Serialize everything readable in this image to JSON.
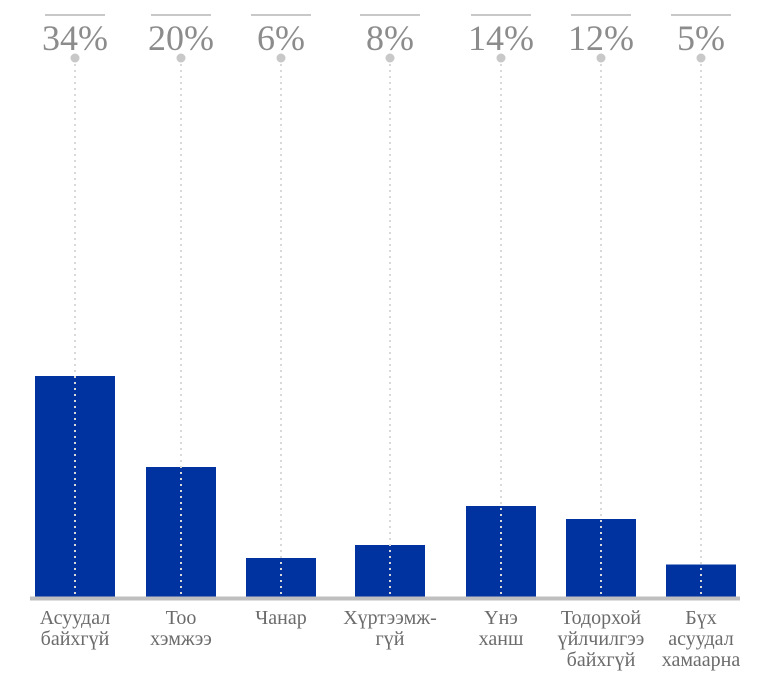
{
  "chart_data": {
    "type": "bar",
    "categories": [
      [
        "Асуудал",
        "байхгүй"
      ],
      [
        "Тоо",
        "хэмжээ"
      ],
      [
        "Чанар"
      ],
      [
        "Хүртээмж-",
        "гүй"
      ],
      [
        "Үнэ",
        "ханш"
      ],
      [
        "Тодорхой",
        "үйлчилгээ",
        "байхгүй"
      ],
      [
        "Бүх",
        "асуудал",
        "хамаарна"
      ]
    ],
    "values": [
      34,
      20,
      6,
      8,
      14,
      12,
      5
    ],
    "value_labels": [
      "34%",
      "20%",
      "6%",
      "8%",
      "14%",
      "12%",
      "5%"
    ],
    "title": "",
    "xlabel": "",
    "ylabel": "",
    "grid": false,
    "legend": "none",
    "colors": {
      "bar": "#0033a0",
      "baseline": "#bfbfbf",
      "leader": "#c8c8c8",
      "value_text": "#8c8c8c",
      "category_text": "#6b6b6b",
      "dotted_line": "#d9d9d9"
    }
  }
}
